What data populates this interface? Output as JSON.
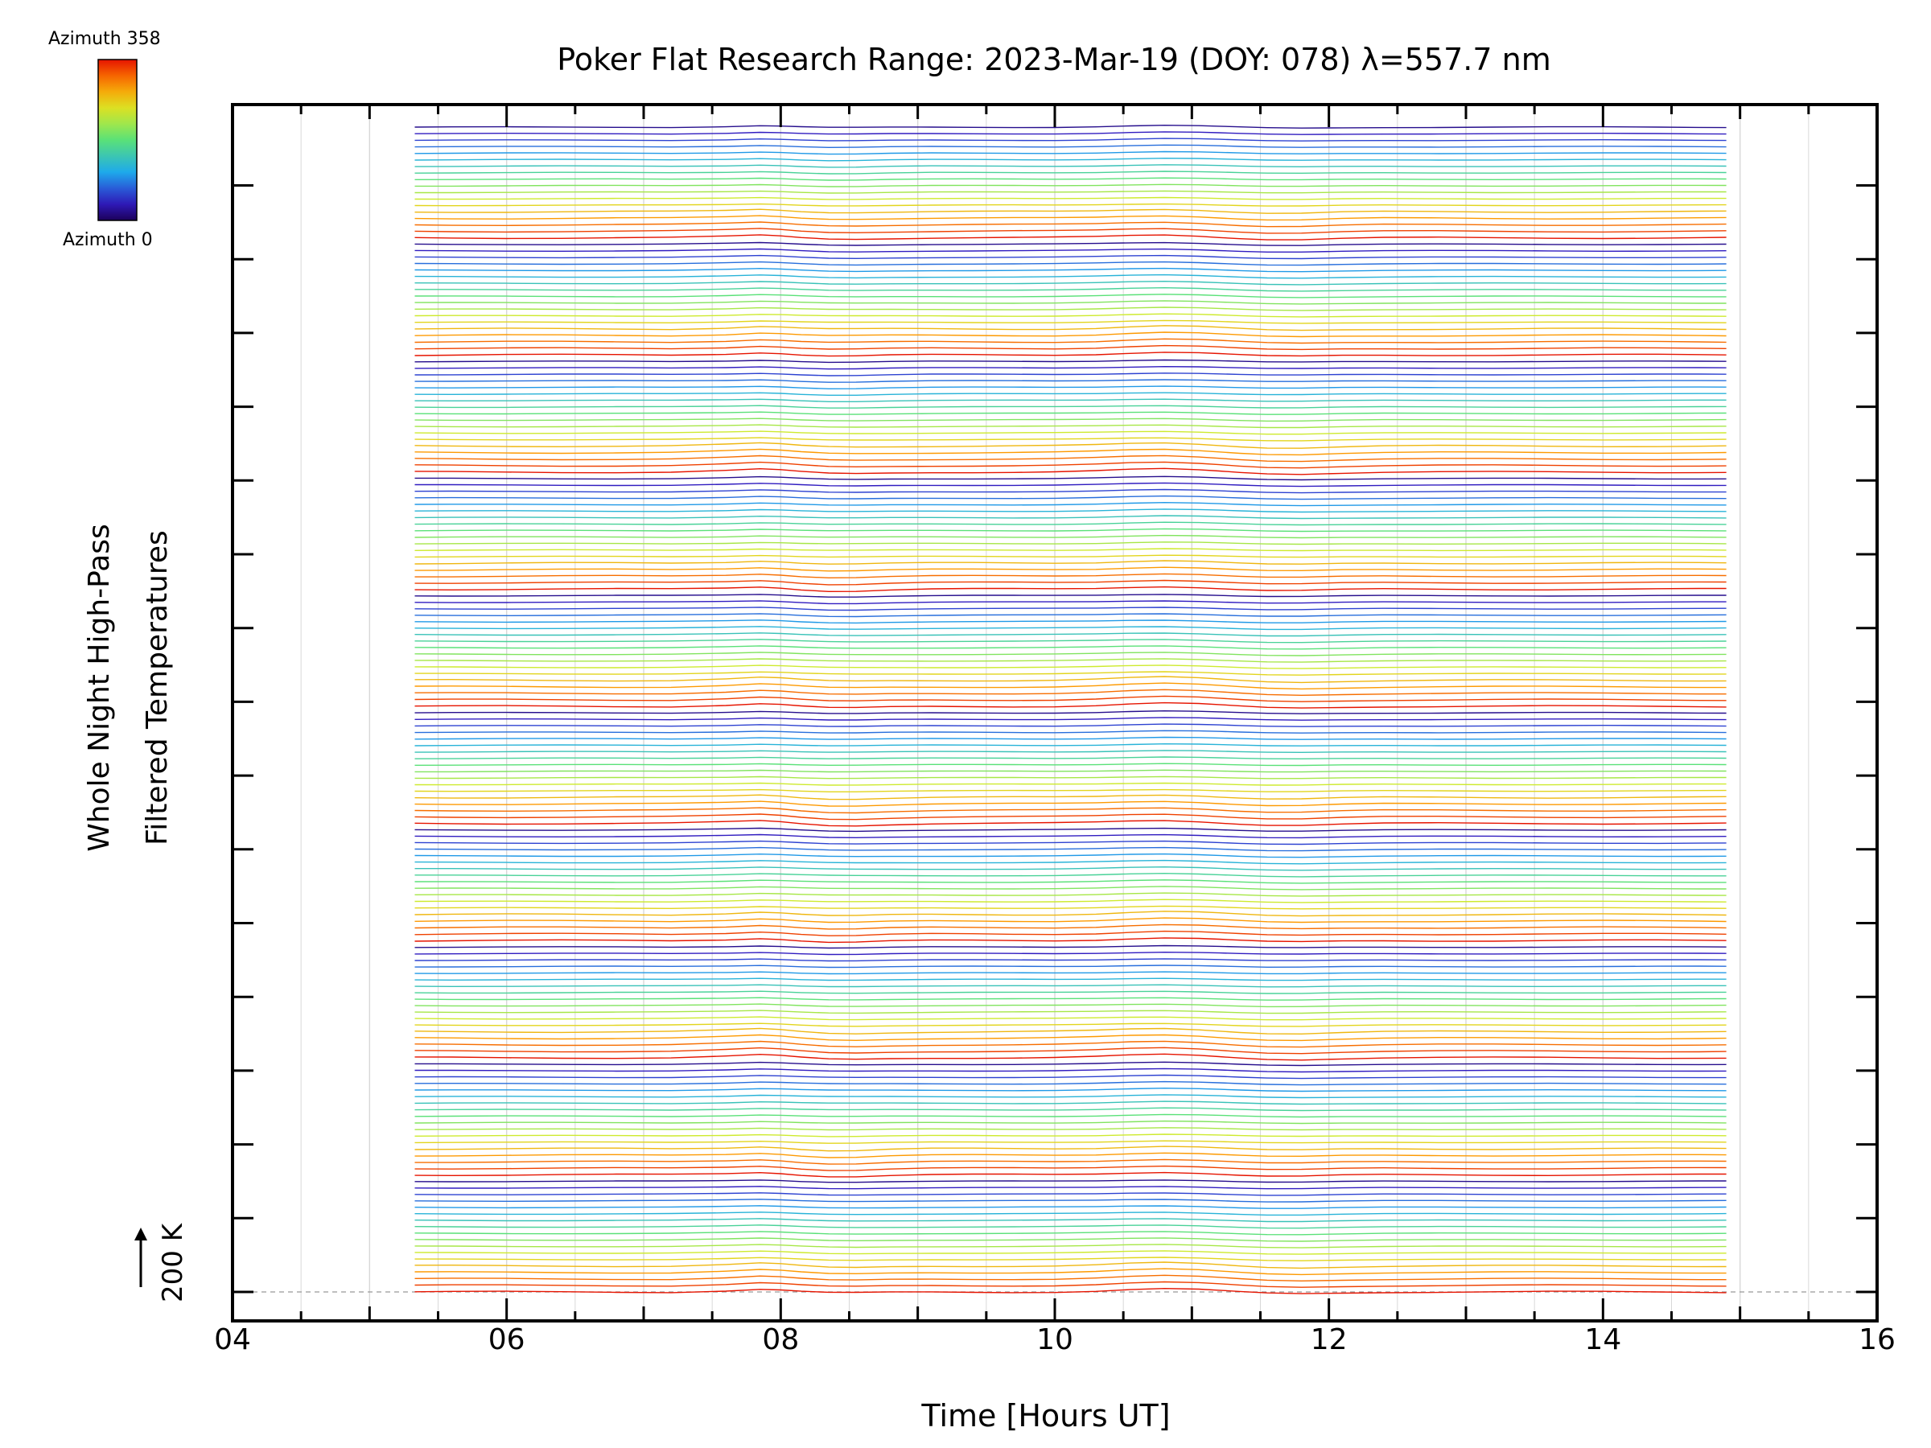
{
  "chart_data": {
    "type": "line",
    "title": "Poker Flat Research Range: 2023-Mar-19 (DOY: 078) λ=557.7 nm",
    "xlabel": "Time [Hours UT]",
    "ylabel": "Whole Night High-Pass\nFiltered Temperatures",
    "xlim": [
      4,
      16
    ],
    "x_ticks": [
      "04",
      "06",
      "08",
      "10",
      "12",
      "14",
      "16"
    ],
    "y_scale_label": "200 K",
    "data_range_hours": [
      5.33,
      14.9
    ],
    "x_sample_hours": [
      5.33,
      5.6,
      6.0,
      6.4,
      6.8,
      7.2,
      7.6,
      7.85,
      8.0,
      8.15,
      8.35,
      8.55,
      8.8,
      9.1,
      9.4,
      9.7,
      10.0,
      10.3,
      10.55,
      10.8,
      11.05,
      11.2,
      11.35,
      11.55,
      11.8,
      12.1,
      12.4,
      12.8,
      13.2,
      13.6,
      14.0,
      14.4,
      14.7,
      14.9
    ],
    "stack_group_offsets_K": [
      0,
      45,
      85,
      125,
      160,
      200,
      250,
      300,
      345,
      380
    ],
    "colorbar": {
      "label_top": "Azimuth 358",
      "label_bottom": "Azimuth 0",
      "min": 0,
      "max": 358,
      "colormap": "rainbow"
    },
    "grid": true,
    "colors": {
      "axis": "#000000",
      "grid": "#d8d8d8",
      "background": "#ffffff"
    }
  }
}
